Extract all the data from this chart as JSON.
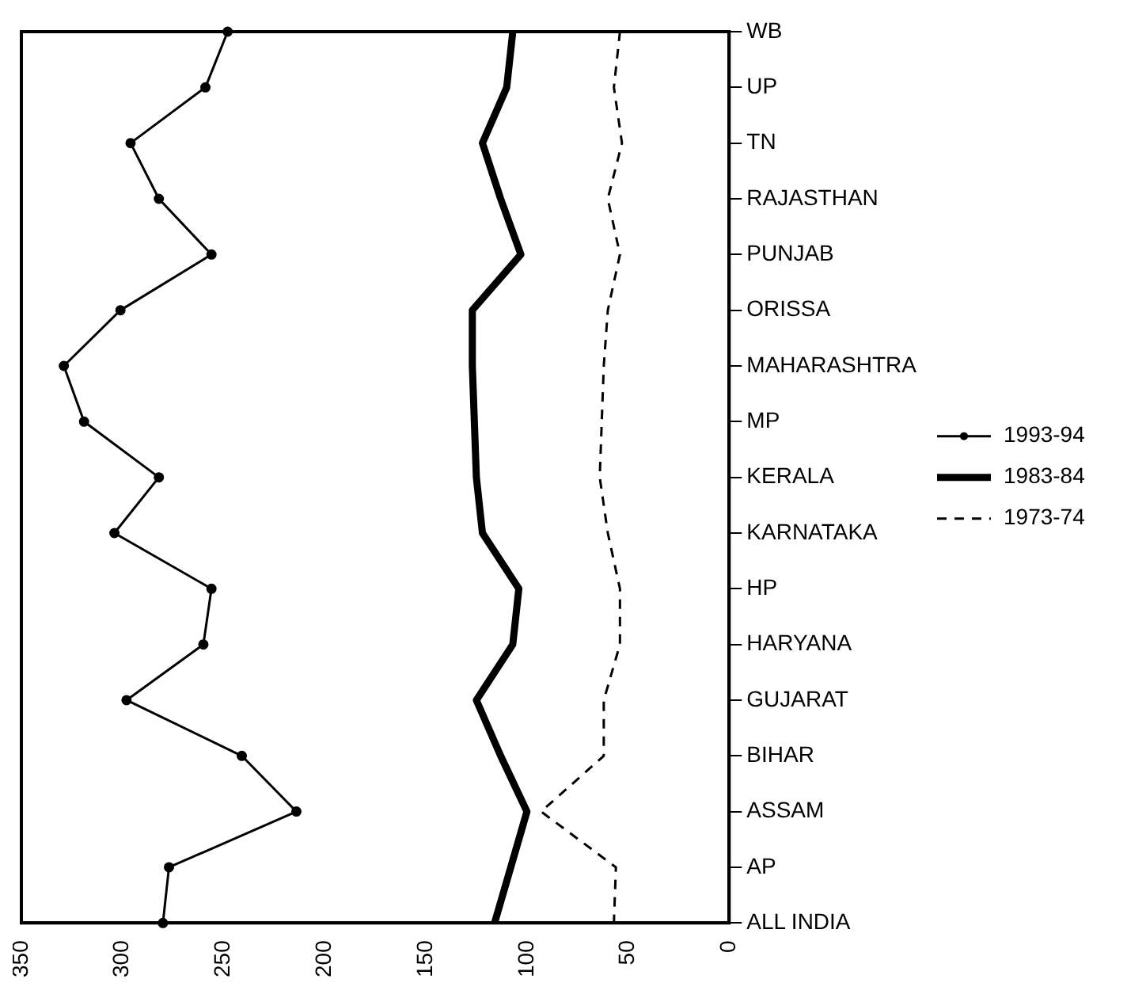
{
  "chart_data": {
    "type": "line",
    "orientation": "horizontal",
    "categories": [
      "WB",
      "UP",
      "TN",
      "RAJASTHAN",
      "PUNJAB",
      "ORISSA",
      "MAHARASHTRA",
      "MP",
      "KERALA",
      "KARNATAKA",
      "HP",
      "HARYANA",
      "GUJARAT",
      "BIHAR",
      "ASSAM",
      "AP",
      "ALL INDIA"
    ],
    "series": [
      {
        "name": "1993-94",
        "color": "#000000",
        "marker": "circle",
        "line_style": "solid",
        "values": [
          248,
          259,
          296,
          282,
          256,
          301,
          329,
          319,
          282,
          304,
          256,
          260,
          298,
          241,
          214,
          277,
          280
        ]
      },
      {
        "name": "1983-84",
        "color": "#000000",
        "marker": "none",
        "line_style": "solid",
        "values": [
          107,
          110,
          122,
          113,
          103,
          127,
          127,
          126,
          125,
          122,
          104,
          107,
          125,
          113,
          100,
          108,
          116
        ]
      },
      {
        "name": "1973-74",
        "color": "#000000",
        "marker": "none",
        "line_style": "dashed",
        "values": [
          54,
          57,
          53,
          60,
          54,
          60,
          62,
          63,
          64,
          60,
          54,
          54,
          62,
          62,
          93,
          56,
          57
        ]
      }
    ],
    "xlim": [
      350,
      0
    ],
    "xticks": [
      350,
      300,
      250,
      200,
      150,
      100,
      50,
      0
    ],
    "grid": false,
    "legend": "right"
  }
}
